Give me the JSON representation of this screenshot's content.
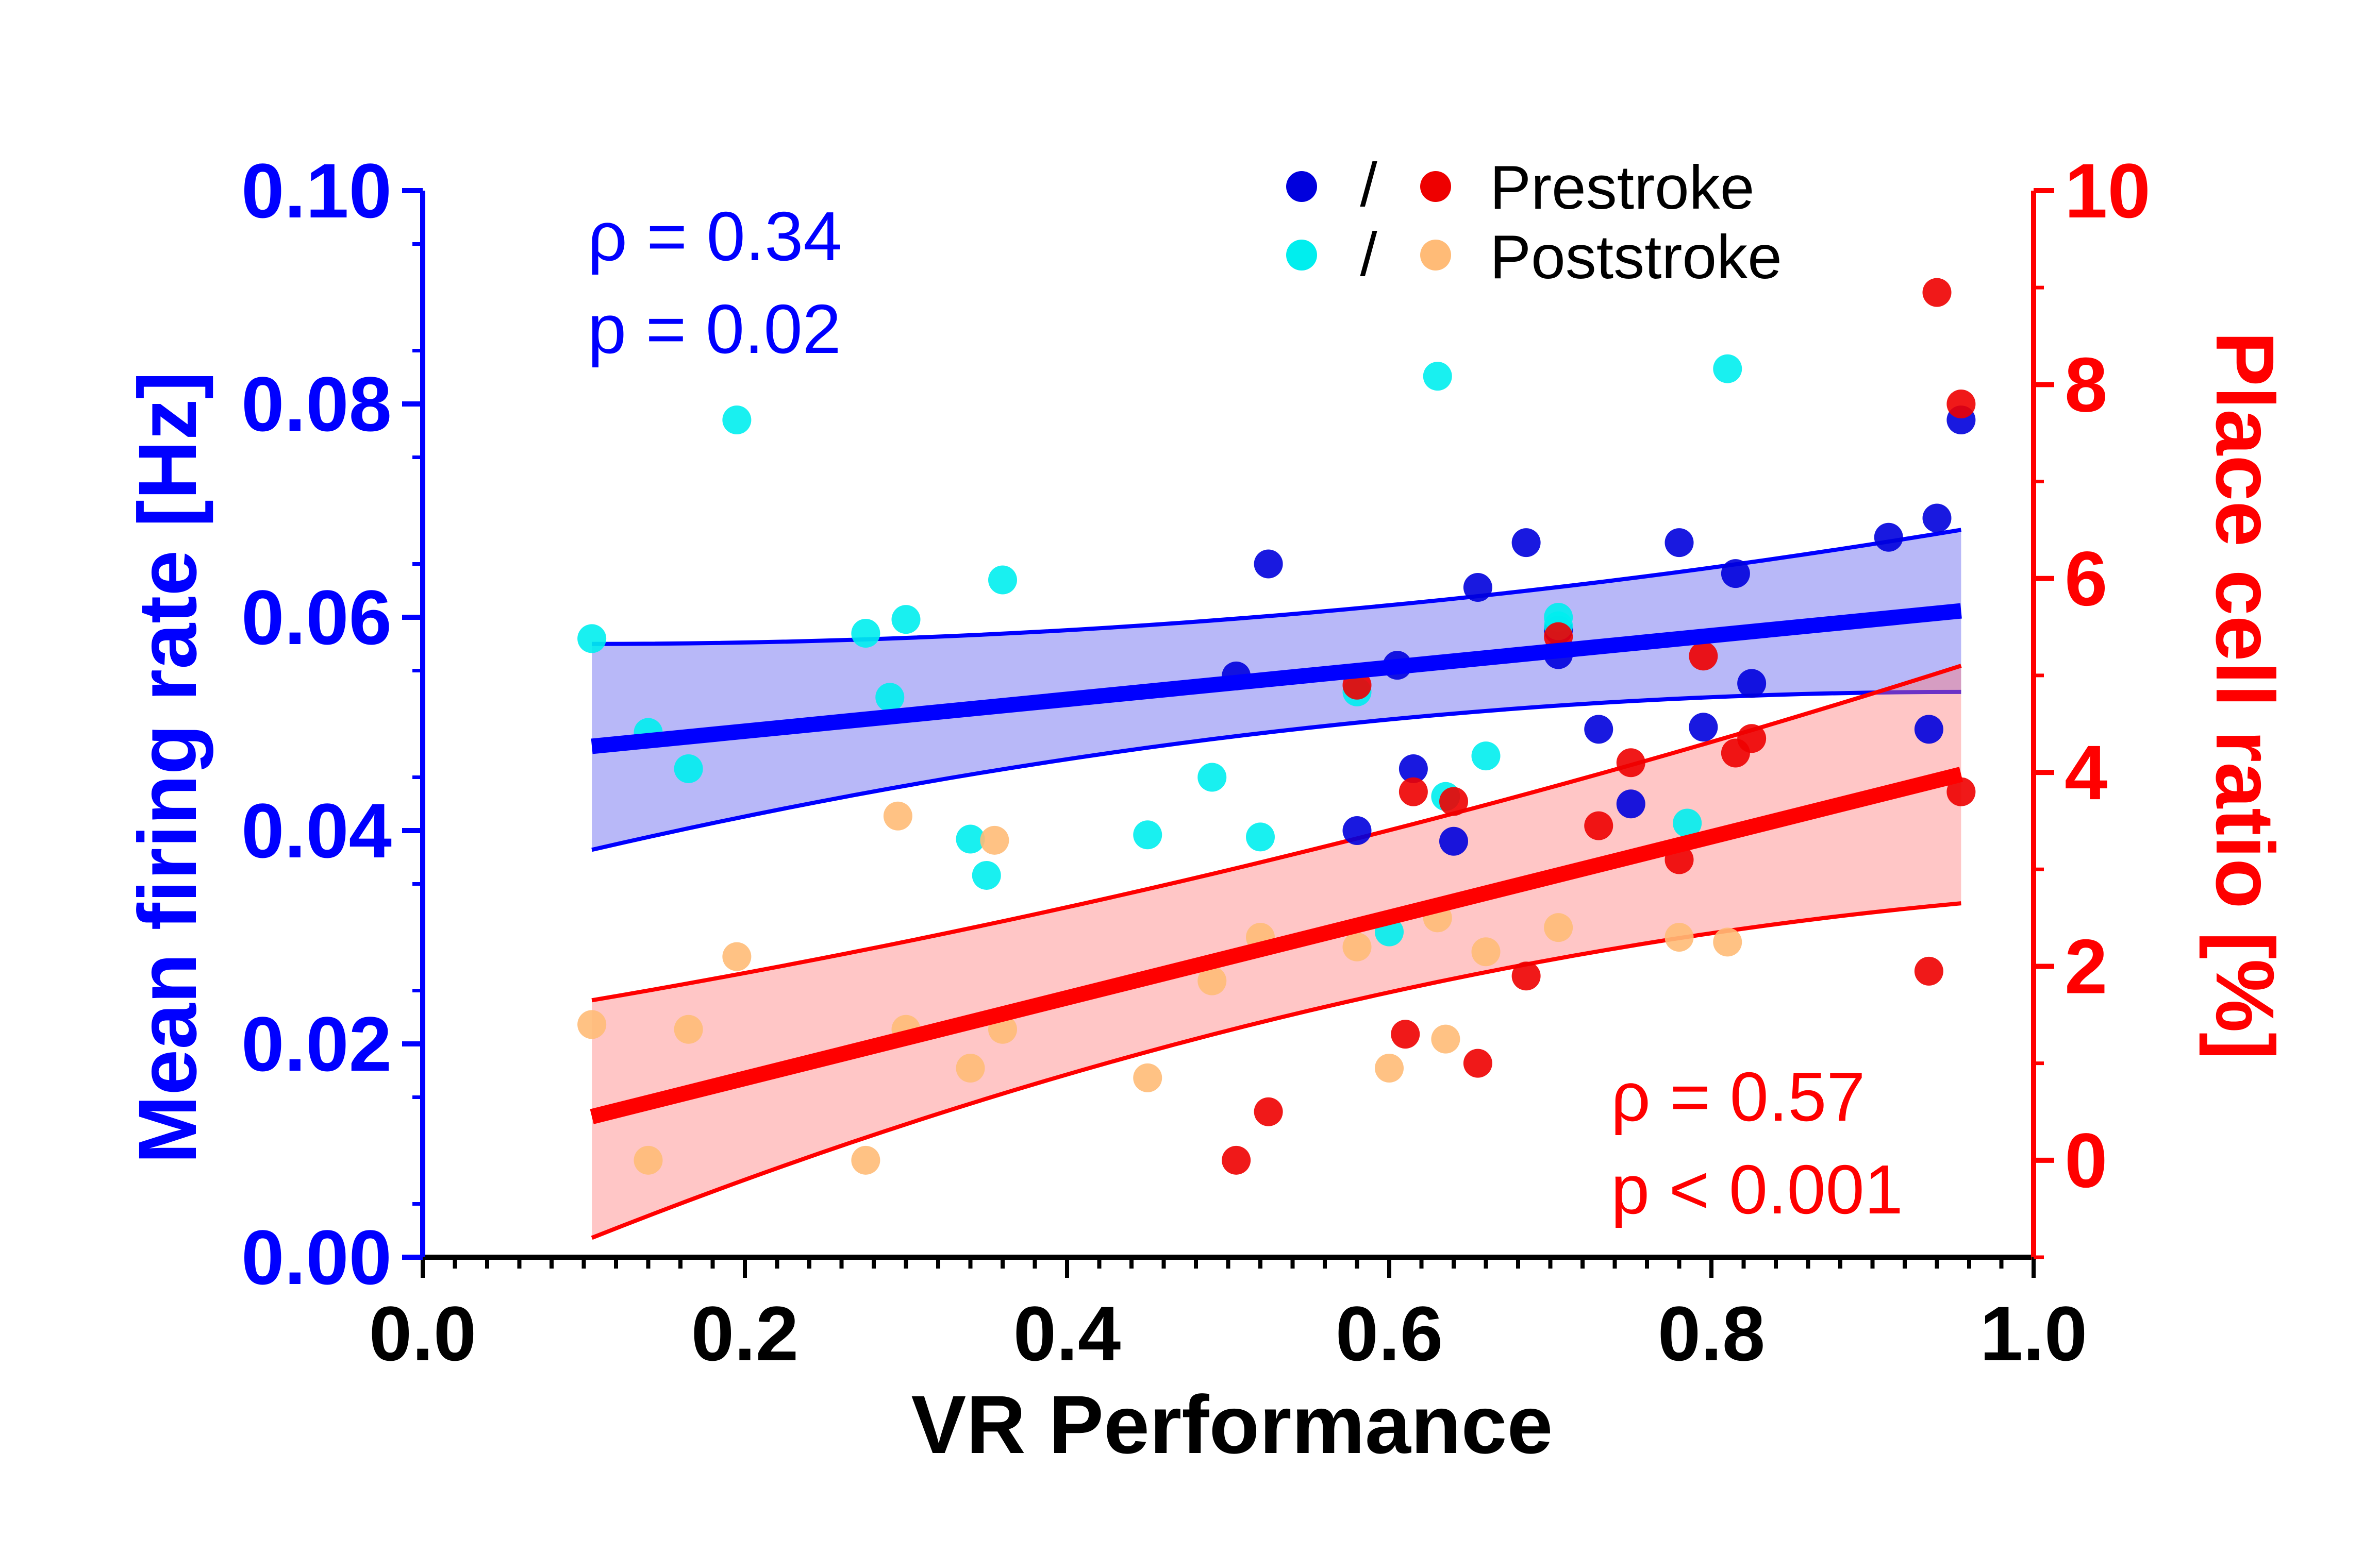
{
  "chart_data": {
    "type": "scatter",
    "xlabel": "VR Performance",
    "ylabel_left": "Mean firing rate [Hz]",
    "ylabel_right": "Place cell ratio [%]",
    "xlim": [
      0.0,
      1.0
    ],
    "ylim_left": [
      0.0,
      0.1
    ],
    "ylim_right": [
      -1,
      10
    ],
    "x_ticks": [
      "0.0",
      "0.2",
      "0.4",
      "0.6",
      "0.8",
      "1.0"
    ],
    "y_left_ticks": [
      "0.00",
      "0.02",
      "0.04",
      "0.06",
      "0.08",
      "0.10"
    ],
    "y_right_ticks": [
      "0",
      "2",
      "4",
      "6",
      "8",
      "10"
    ],
    "legend": {
      "separator": "/",
      "placement": "top-right",
      "entries": [
        {
          "label": "Prestroke",
          "left_color": "#0000dd",
          "right_color": "#ee0000"
        },
        {
          "label": "Poststroke",
          "left_color": "#00eeee",
          "right_color": "#ffbb77"
        }
      ]
    },
    "stats": {
      "firing_rate": {
        "rho": "ρ = 0.34",
        "p": "p = 0.02",
        "color": "#0000ff"
      },
      "place_cell": {
        "rho": "ρ = 0.57",
        "p": "p < 0.001",
        "color": "#ff0000"
      }
    },
    "regressions": [
      {
        "axis": "left",
        "color": "#0000ff",
        "fill": "#5555ee",
        "x_start": 0.105,
        "x_end": 0.955,
        "fit": [
          0.0479,
          0.0606
        ],
        "upper": [
          0.0575,
          0.0575,
          0.0682
        ],
        "lower": [
          0.0382,
          0.053,
          0.053
        ]
      },
      {
        "axis": "right",
        "color": "#ff0000",
        "fill": "#ff7777",
        "x_start": 0.105,
        "x_end": 0.955,
        "fit": [
          0.45,
          3.98
        ],
        "upper": [
          1.65,
          2.85,
          5.1
        ],
        "lower": [
          -0.8,
          2.0,
          2.65
        ]
      }
    ],
    "series": [
      {
        "name": "Prestroke",
        "axis": "left",
        "color": "#0000dd",
        "x": [
          0.505,
          0.525,
          0.58,
          0.605,
          0.615,
          0.64,
          0.655,
          0.685,
          0.705,
          0.705,
          0.73,
          0.75,
          0.78,
          0.795,
          0.815,
          0.825,
          0.91,
          0.935,
          0.94,
          0.955
        ],
        "y": [
          0.0545,
          0.065,
          0.04,
          0.0555,
          0.0458,
          0.039,
          0.0628,
          0.067,
          0.0565,
          0.0588,
          0.0495,
          0.0425,
          0.067,
          0.0497,
          0.0641,
          0.0538,
          0.0675,
          0.0495,
          0.0693,
          0.0785
        ]
      },
      {
        "name": "Poststroke",
        "axis": "left",
        "color": "#00eeee",
        "x": [
          0.105,
          0.14,
          0.165,
          0.195,
          0.275,
          0.29,
          0.3,
          0.34,
          0.35,
          0.36,
          0.45,
          0.49,
          0.52,
          0.58,
          0.6,
          0.63,
          0.635,
          0.66,
          0.705,
          0.705,
          0.785,
          0.81
        ],
        "y": [
          0.058,
          0.0492,
          0.0458,
          0.0785,
          0.0585,
          0.0525,
          0.0598,
          0.0392,
          0.0358,
          0.0635,
          0.0396,
          0.045,
          0.0394,
          0.053,
          0.0305,
          0.0826,
          0.0432,
          0.047,
          0.06,
          0.0592,
          0.0407,
          0.0833
        ]
      },
      {
        "name": "Prestroke",
        "axis": "right",
        "color": "#ee0000",
        "x": [
          0.505,
          0.525,
          0.58,
          0.61,
          0.615,
          0.64,
          0.655,
          0.685,
          0.705,
          0.73,
          0.75,
          0.78,
          0.795,
          0.815,
          0.825,
          0.935,
          0.94,
          0.955,
          0.955
        ],
        "y": [
          0.0,
          0.5,
          4.9,
          1.3,
          3.8,
          3.7,
          1.0,
          1.9,
          5.4,
          3.45,
          4.1,
          3.1,
          5.2,
          4.2,
          4.35,
          1.95,
          8.95,
          7.8,
          3.8
        ]
      },
      {
        "name": "Poststroke",
        "axis": "right",
        "color": "#ffbb77",
        "x": [
          0.105,
          0.14,
          0.165,
          0.195,
          0.275,
          0.295,
          0.3,
          0.34,
          0.355,
          0.36,
          0.45,
          0.49,
          0.52,
          0.58,
          0.6,
          0.63,
          0.635,
          0.66,
          0.705,
          0.78,
          0.81
        ],
        "y": [
          1.4,
          0.0,
          1.35,
          2.1,
          0.0,
          3.55,
          1.35,
          0.95,
          3.3,
          1.35,
          0.85,
          1.85,
          2.3,
          2.2,
          0.95,
          2.5,
          1.25,
          2.15,
          2.4,
          2.3,
          2.25
        ]
      }
    ]
  }
}
